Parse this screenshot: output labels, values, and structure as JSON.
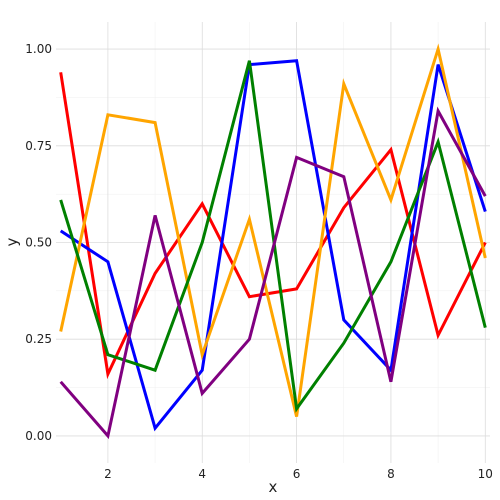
{
  "chart_data": {
    "type": "line",
    "title": "",
    "xlabel": "x",
    "ylabel": "y",
    "xlim": [
      0.9,
      10.1
    ],
    "ylim": [
      -0.07,
      1.07
    ],
    "x_ticks": [
      2,
      4,
      6,
      8,
      10
    ],
    "x_tick_labels": [
      "2",
      "4",
      "6",
      "8",
      "10"
    ],
    "y_ticks": [
      0,
      0.25,
      0.5,
      0.75,
      1.0
    ],
    "y_tick_labels": [
      "0.00",
      "0.25",
      "0.50",
      "0.75",
      "1.00"
    ],
    "grid": true,
    "legend": "none",
    "x": [
      1,
      2,
      3,
      4,
      5,
      6,
      7,
      8,
      9,
      10
    ],
    "series": [
      {
        "color": "#ff0000",
        "values": [
          0.94,
          0.16,
          0.42,
          0.6,
          0.36,
          0.38,
          0.59,
          0.74,
          0.26,
          0.5
        ]
      },
      {
        "color": "#0000ff",
        "values": [
          0.53,
          0.45,
          0.02,
          0.17,
          0.96,
          0.97,
          0.3,
          0.17,
          0.96,
          0.58
        ]
      },
      {
        "color": "#ffa500",
        "values": [
          0.27,
          0.83,
          0.81,
          0.21,
          0.56,
          0.05,
          0.91,
          0.61,
          1.0,
          0.46
        ]
      },
      {
        "color": "#008000",
        "values": [
          0.61,
          0.21,
          0.17,
          0.5,
          0.97,
          0.07,
          0.24,
          0.45,
          0.76,
          0.28
        ]
      },
      {
        "color": "#800080",
        "values": [
          0.14,
          0.0,
          0.57,
          0.11,
          0.25,
          0.72,
          0.67,
          0.14,
          0.84,
          0.62
        ]
      }
    ]
  }
}
